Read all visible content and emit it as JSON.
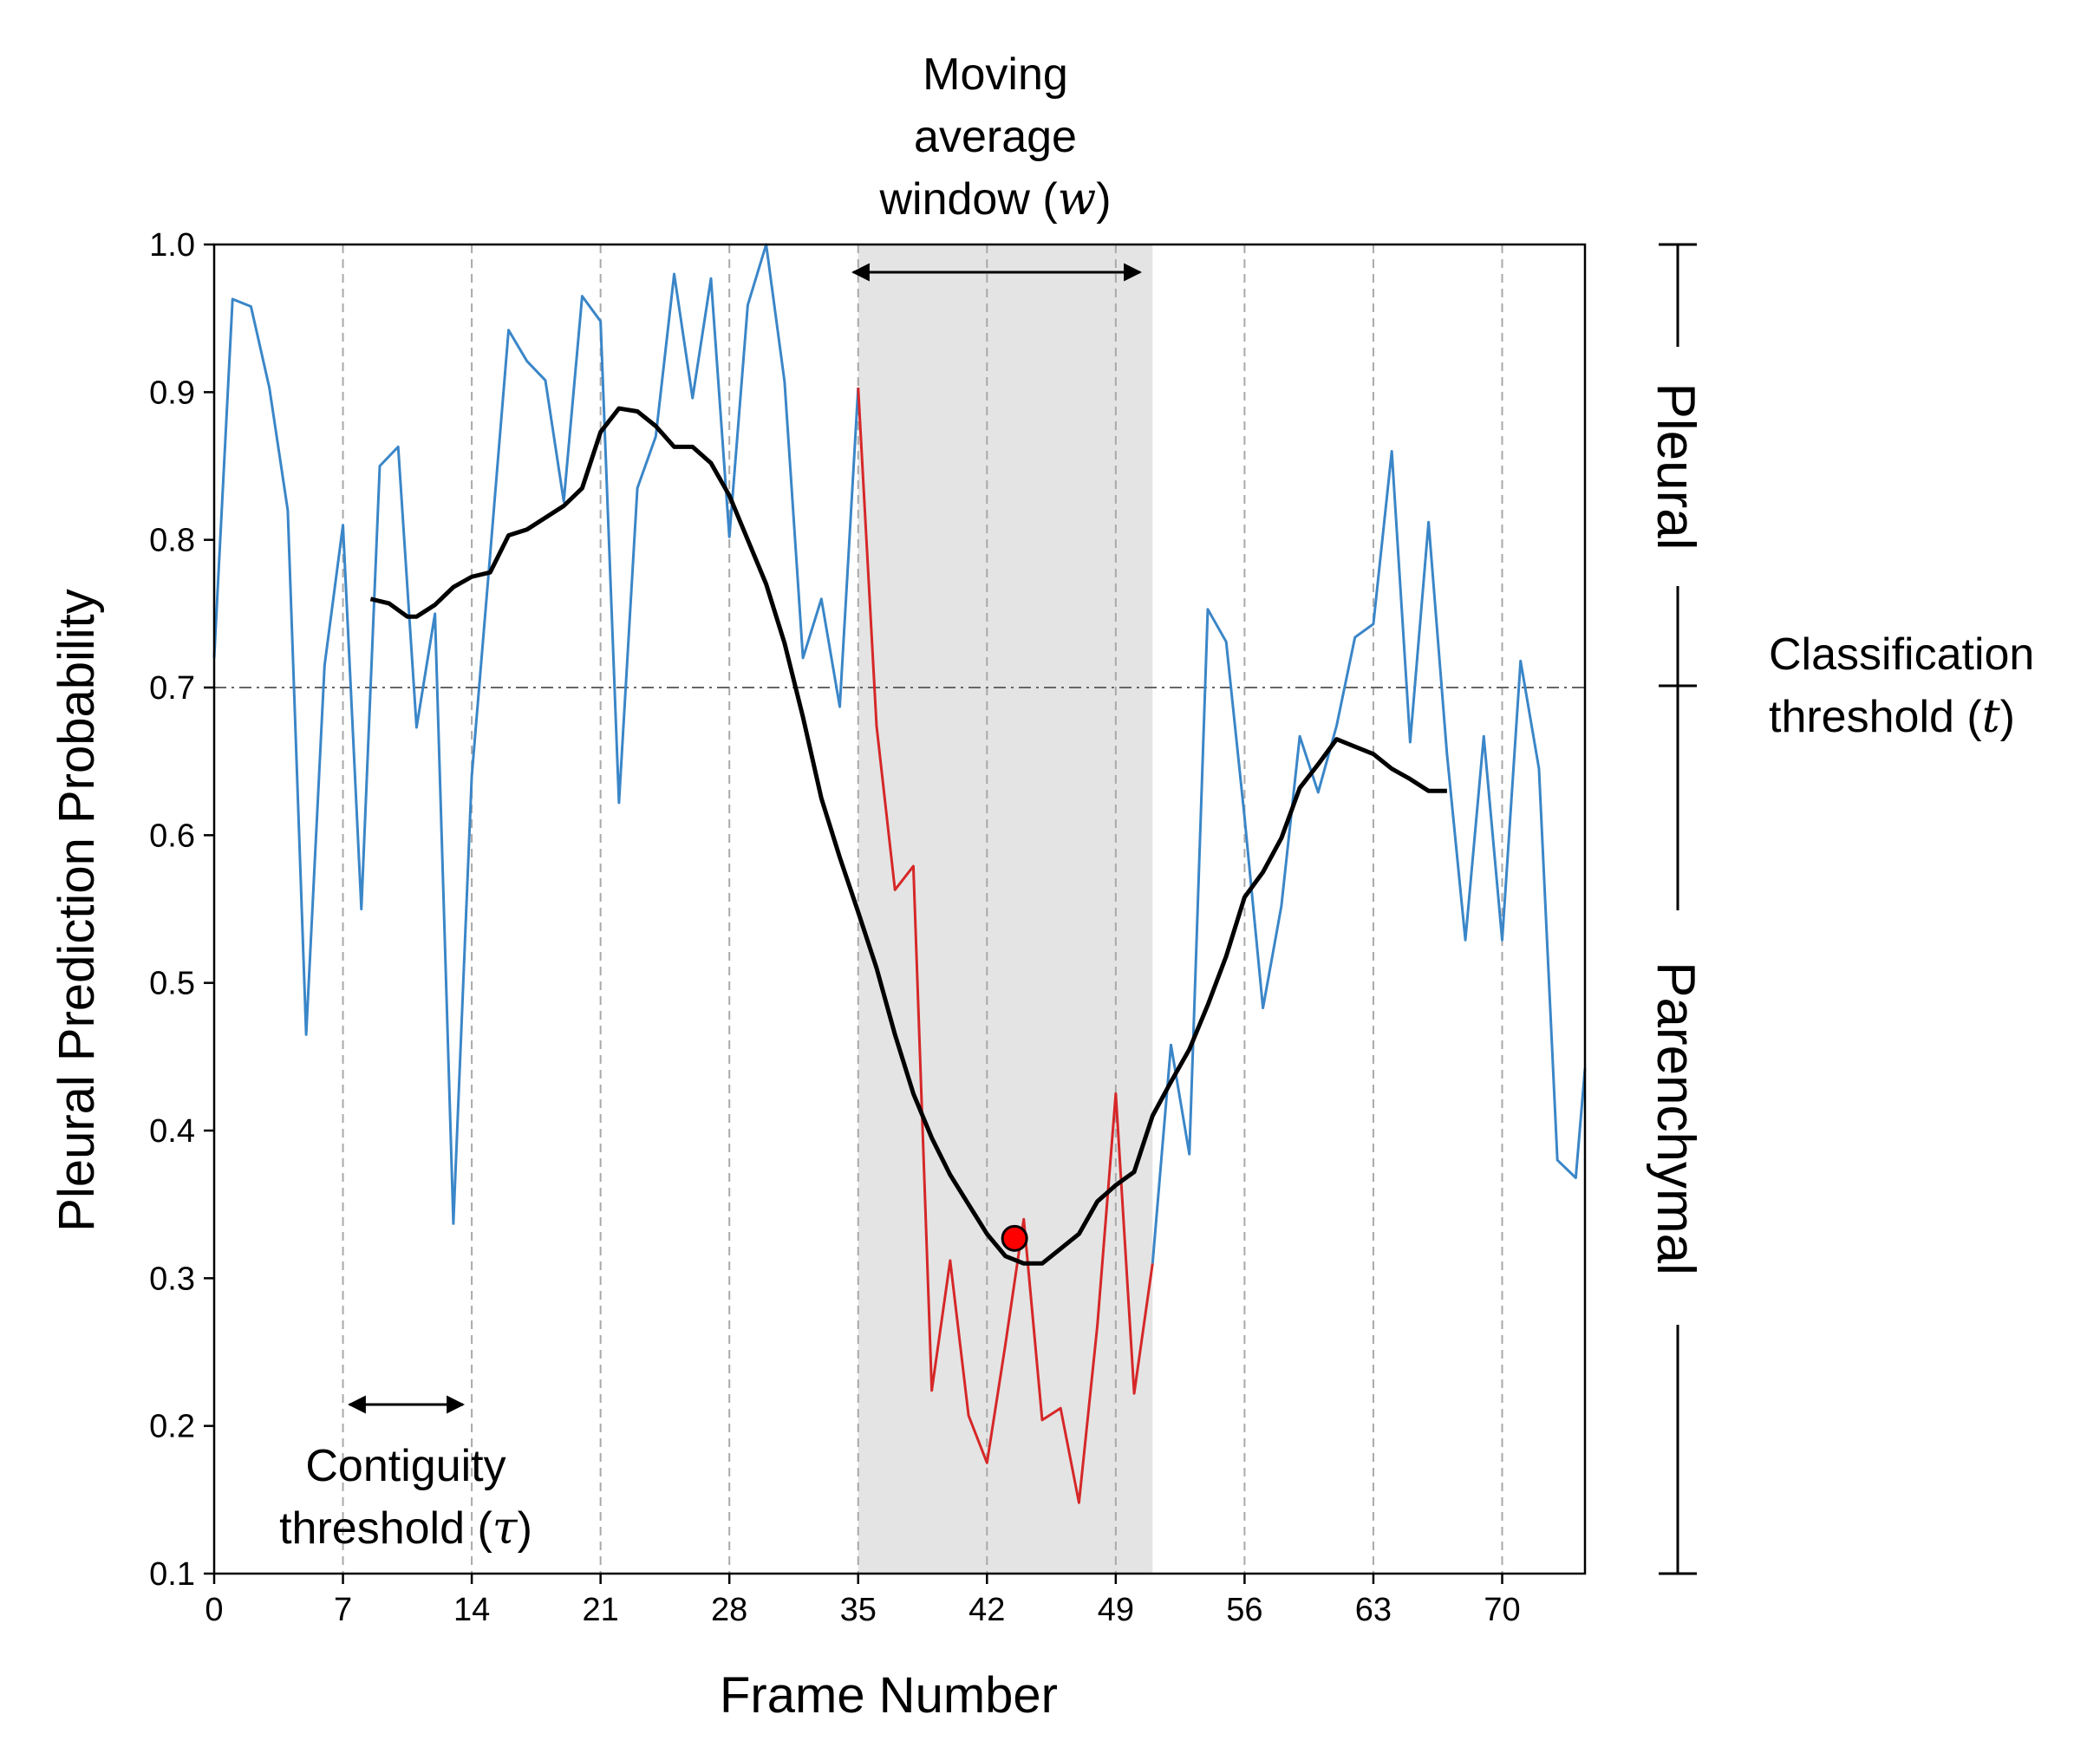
{
  "chart_data": {
    "type": "line",
    "xlabel": "Frame Number",
    "ylabel": "Pleural Prediction Probability",
    "xlim": [
      0,
      74.5
    ],
    "ylim": [
      0.1,
      1.0
    ],
    "xticks": [
      0,
      7,
      14,
      21,
      28,
      35,
      42,
      49,
      56,
      63,
      70
    ],
    "yticks": [
      0.1,
      0.2,
      0.3,
      0.4,
      0.5,
      0.6,
      0.7,
      0.8,
      0.9,
      1.0
    ],
    "xtick_labels": [
      "0",
      "7",
      "14",
      "21",
      "28",
      "35",
      "42",
      "49",
      "56",
      "63",
      "70"
    ],
    "ytick_labels": [
      "0.1",
      "0.2",
      "0.3",
      "0.4",
      "0.5",
      "0.6",
      "0.7",
      "0.8",
      "0.9",
      "1.0"
    ],
    "grid": "vertical dashed lines at x ticks",
    "threshold": 0.7,
    "window": [
      35,
      51
    ],
    "colors": {
      "raw": "#3a86c8",
      "in_window": "#d62728",
      "moving_average": "#000000",
      "window_fill": "#e4e4e4",
      "marker": "#ff0000"
    },
    "series": [
      {
        "key": "raw",
        "x": [
          0,
          1,
          2,
          3,
          4,
          5,
          6,
          7,
          8,
          9,
          10,
          11,
          12,
          13,
          14,
          15,
          16,
          17,
          18,
          19,
          20,
          21,
          22,
          23,
          24,
          25,
          26,
          27,
          28,
          29,
          30,
          31,
          32,
          33,
          34,
          35
        ],
        "values": [
          0.72,
          0.963,
          0.958,
          0.903,
          0.82,
          0.465,
          0.715,
          0.81,
          0.55,
          0.85,
          0.863,
          0.673,
          0.75,
          0.337,
          0.64,
          0.79,
          0.942,
          0.921,
          0.908,
          0.826,
          0.965,
          0.948,
          0.622,
          0.835,
          0.87,
          0.98,
          0.896,
          0.977,
          0.802,
          0.959,
          1.0,
          0.907,
          0.72,
          0.76,
          0.687,
          0.903
        ]
      },
      {
        "key": "in_window",
        "x": [
          35,
          36,
          37,
          38,
          39,
          40,
          41,
          42,
          43,
          44,
          45,
          46,
          47,
          48,
          49,
          50,
          51
        ],
        "values": [
          0.903,
          0.674,
          0.563,
          0.579,
          0.224,
          0.312,
          0.207,
          0.175,
          0.255,
          0.34,
          0.204,
          0.212,
          0.148,
          0.268,
          0.425,
          0.222,
          0.31
        ]
      },
      {
        "key": "raw_after",
        "x": [
          51,
          52,
          53,
          54,
          55,
          56,
          57,
          58,
          59,
          60,
          61,
          62,
          63,
          64,
          65,
          66,
          67,
          68,
          69,
          70,
          71,
          72,
          73,
          74,
          74.5
        ],
        "values": [
          0.31,
          0.458,
          0.384,
          0.753,
          0.731,
          0.612,
          0.483,
          0.552,
          0.667,
          0.629,
          0.674,
          0.734,
          0.743,
          0.86,
          0.663,
          0.812,
          0.655,
          0.529,
          0.667,
          0.529,
          0.718,
          0.645,
          0.38,
          0.368,
          0.442
        ]
      },
      {
        "key": "moving_average",
        "x": [
          8.5,
          9.5,
          10.5,
          11,
          12,
          13,
          14,
          15,
          16,
          17,
          18,
          19,
          20,
          21,
          22,
          23,
          24,
          25,
          26,
          27,
          28,
          29,
          30,
          31,
          32,
          33,
          34,
          35,
          36,
          37,
          38,
          39,
          40,
          41,
          42,
          43,
          44,
          45,
          46,
          47,
          48,
          49,
          50,
          51,
          52,
          53,
          54,
          55,
          56,
          57,
          58,
          59,
          60,
          61,
          62,
          63,
          64,
          65,
          66,
          67
        ],
        "values": [
          0.76,
          0.757,
          0.748,
          0.748,
          0.756,
          0.768,
          0.775,
          0.778,
          0.803,
          0.807,
          0.815,
          0.823,
          0.835,
          0.873,
          0.889,
          0.887,
          0.877,
          0.863,
          0.863,
          0.852,
          0.83,
          0.8,
          0.77,
          0.73,
          0.68,
          0.625,
          0.585,
          0.548,
          0.51,
          0.465,
          0.425,
          0.395,
          0.37,
          0.35,
          0.33,
          0.315,
          0.31,
          0.31,
          0.32,
          0.33,
          0.352,
          0.363,
          0.372,
          0.41,
          0.433,
          0.455,
          0.485,
          0.518,
          0.558,
          0.575,
          0.598,
          0.632,
          0.648,
          0.665,
          0.66,
          0.655,
          0.645,
          0.638,
          0.63,
          0.63
        ]
      }
    ],
    "marker": {
      "x": 43.5,
      "y": 0.327
    },
    "annotations": {
      "window_line1": "Moving",
      "window_line2": "average",
      "window_line3_text": "window (",
      "window_symbol": "w",
      "window_close": ")",
      "contiguity_line1": "Contiguity",
      "contiguity_line2_text": "threshold (",
      "contiguity_symbol": "τ",
      "contiguity_close": ")",
      "classification_line1": "Classification",
      "classification_line2_text": "threshold (",
      "classification_symbol": "t",
      "classification_close": ")",
      "pleural": "Pleural",
      "parenchymal": "Parenchymal"
    }
  }
}
